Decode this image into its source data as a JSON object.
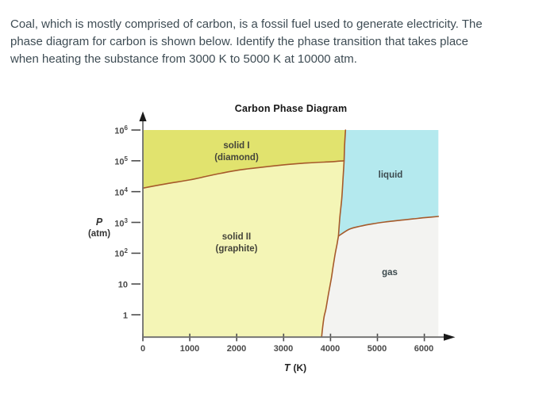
{
  "question": {
    "lines": [
      "Coal, which is mostly comprised of carbon, is a fossil fuel used to generate electricity. The",
      "phase diagram for carbon is shown below. Identify the phase transition that takes place",
      "when heating the substance from 3000 K to 5000 K at 10000 atm."
    ]
  },
  "chart_data": {
    "type": "area",
    "subtype": "phase-diagram",
    "title": "Carbon Phase Diagram",
    "xlabel_main": "T",
    "xlabel_unit": "(K)",
    "ylabel_main": "P",
    "ylabel_unit": "(atm)",
    "x_axis": {
      "min": 0,
      "max": 6300,
      "unit": "K",
      "ticks": [
        {
          "value": 0,
          "label": "0"
        },
        {
          "value": 1000,
          "label": "1000"
        },
        {
          "value": 2000,
          "label": "2000"
        },
        {
          "value": 3000,
          "label": "3000"
        },
        {
          "value": 4000,
          "label": "4000"
        },
        {
          "value": 5000,
          "label": "5000"
        },
        {
          "value": 6000,
          "label": "6000"
        }
      ]
    },
    "y_axis": {
      "scale": "log",
      "unit": "atm",
      "min_exp": -0.72,
      "max_exp": 6,
      "ticks": [
        {
          "value": 1000000,
          "base": "10",
          "exp": "6"
        },
        {
          "value": 100000,
          "base": "10",
          "exp": "5"
        },
        {
          "value": 10000,
          "base": "10",
          "exp": "4"
        },
        {
          "value": 1000,
          "base": "10",
          "exp": "3"
        },
        {
          "value": 100,
          "base": "10",
          "exp": "2"
        },
        {
          "value": 10,
          "base": "10",
          "exp": ""
        },
        {
          "value": 1,
          "base": "1",
          "exp": ""
        }
      ]
    },
    "line_color": "#a65a2b",
    "axis_color": "#6e6e6e",
    "tick_color": "#4d4d4d",
    "boundaries": {
      "solid1_solid2": {
        "name": "graphite-diamond transition line",
        "points": [
          [
            0,
            13000
          ],
          [
            500,
            18000
          ],
          [
            1000,
            24000
          ],
          [
            1500,
            35000
          ],
          [
            2000,
            49000
          ],
          [
            2500,
            61000
          ],
          [
            3000,
            74000
          ],
          [
            3500,
            85000
          ],
          [
            4000,
            93000
          ],
          [
            4290,
            100000
          ]
        ]
      },
      "solid_liquid": {
        "name": "melting line",
        "points": [
          [
            4320,
            1000000
          ],
          [
            4300,
            300000
          ],
          [
            4290,
            100000
          ],
          [
            4270,
            30000
          ],
          [
            4240,
            6000
          ],
          [
            4200,
            1500
          ],
          [
            4170,
            360
          ]
        ]
      },
      "solid2_gas": {
        "name": "sublimation line",
        "points": [
          [
            3810,
            0.19
          ],
          [
            3860,
            0.8
          ],
          [
            3900,
            1.5
          ],
          [
            3960,
            5
          ],
          [
            4020,
            16
          ],
          [
            4060,
            40
          ],
          [
            4100,
            96
          ],
          [
            4140,
            200
          ],
          [
            4170,
            360
          ]
        ]
      },
      "liquid_gas": {
        "name": "vaporization line",
        "points": [
          [
            4170,
            360
          ],
          [
            4400,
            600
          ],
          [
            4630,
            750
          ],
          [
            4900,
            900
          ],
          [
            5200,
            1050
          ],
          [
            5500,
            1180
          ],
          [
            5760,
            1300
          ],
          [
            6000,
            1420
          ],
          [
            6300,
            1560
          ]
        ]
      }
    },
    "triple_points": [
      {
        "name": "solidI-solidII-liquid",
        "T": 4290,
        "P": 100000
      },
      {
        "name": "solidII-liquid-gas",
        "T": 4170,
        "P": 360
      }
    ],
    "regions": [
      {
        "id": "solid1",
        "label_lines": [
          "solid I",
          "(diamond)"
        ],
        "color": "#e1e36e",
        "points": [
          [
            0,
            1000000
          ],
          [
            0,
            13000
          ],
          [
            500,
            18000
          ],
          [
            1000,
            24000
          ],
          [
            1500,
            35000
          ],
          [
            2000,
            49000
          ],
          [
            2500,
            61000
          ],
          [
            3000,
            74000
          ],
          [
            3500,
            85000
          ],
          [
            4000,
            93000
          ],
          [
            4290,
            100000
          ],
          [
            4300,
            300000
          ],
          [
            4320,
            1000000
          ]
        ]
      },
      {
        "id": "solid2",
        "label_lines": [
          "solid II",
          "(graphite)"
        ],
        "color": "#f4f5b6",
        "points": [
          [
            0,
            13000
          ],
          [
            500,
            18000
          ],
          [
            1000,
            24000
          ],
          [
            1500,
            35000
          ],
          [
            2000,
            49000
          ],
          [
            2500,
            61000
          ],
          [
            3000,
            74000
          ],
          [
            3500,
            85000
          ],
          [
            4000,
            93000
          ],
          [
            4290,
            100000
          ],
          [
            4270,
            30000
          ],
          [
            4240,
            6000
          ],
          [
            4200,
            1500
          ],
          [
            4170,
            360
          ],
          [
            4140,
            200
          ],
          [
            4100,
            96
          ],
          [
            4060,
            40
          ],
          [
            4020,
            16
          ],
          [
            3960,
            5
          ],
          [
            3900,
            1.5
          ],
          [
            3860,
            0.8
          ],
          [
            3810,
            0.19
          ],
          [
            0,
            0.19
          ]
        ]
      },
      {
        "id": "liquid",
        "label_lines": [
          "liquid"
        ],
        "color": "#b4e9ee",
        "points": [
          [
            4320,
            1000000
          ],
          [
            4300,
            300000
          ],
          [
            4290,
            100000
          ],
          [
            4270,
            30000
          ],
          [
            4240,
            6000
          ],
          [
            4200,
            1500
          ],
          [
            4170,
            360
          ],
          [
            4400,
            600
          ],
          [
            4630,
            750
          ],
          [
            4900,
            900
          ],
          [
            5200,
            1050
          ],
          [
            5500,
            1180
          ],
          [
            5760,
            1300
          ],
          [
            6000,
            1420
          ],
          [
            6300,
            1560
          ],
          [
            6300,
            1000000
          ]
        ]
      },
      {
        "id": "gas",
        "label_lines": [
          "gas"
        ],
        "color": "#f3f3f1",
        "points": [
          [
            3810,
            0.19
          ],
          [
            3860,
            0.8
          ],
          [
            3900,
            1.5
          ],
          [
            3960,
            5
          ],
          [
            4020,
            16
          ],
          [
            4060,
            40
          ],
          [
            4100,
            96
          ],
          [
            4140,
            200
          ],
          [
            4170,
            360
          ],
          [
            4400,
            600
          ],
          [
            4630,
            750
          ],
          [
            4900,
            900
          ],
          [
            5200,
            1050
          ],
          [
            5500,
            1180
          ],
          [
            5760,
            1300
          ],
          [
            6000,
            1420
          ],
          [
            6300,
            1560
          ],
          [
            6300,
            0.19
          ]
        ]
      }
    ]
  }
}
